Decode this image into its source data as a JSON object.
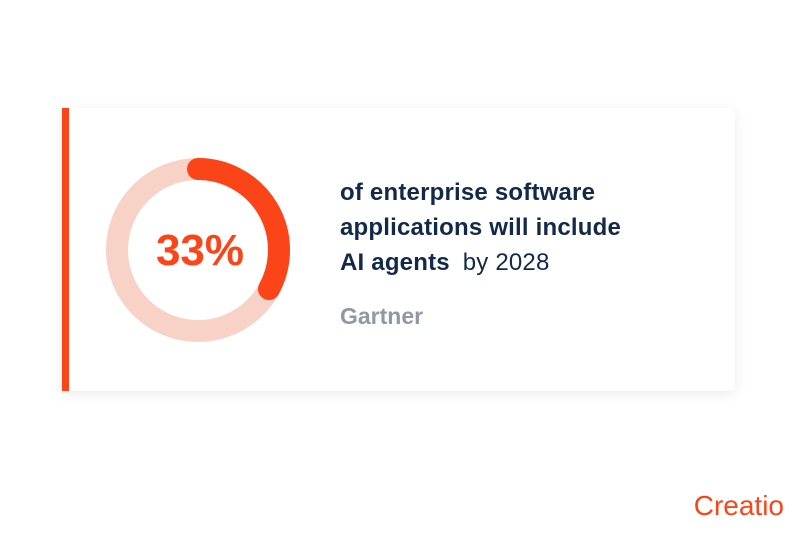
{
  "chart_data": {
    "type": "donut",
    "values": [
      33
    ],
    "value_labels": [
      "33%"
    ],
    "range": [
      0,
      100
    ],
    "color": "#fc4419",
    "track_color": "#f8d2c7",
    "description": [
      "of enterprise software",
      "applications will include",
      "AI agents",
      "by 2028"
    ],
    "source": "Gartner",
    "brand": "Creatio"
  }
}
